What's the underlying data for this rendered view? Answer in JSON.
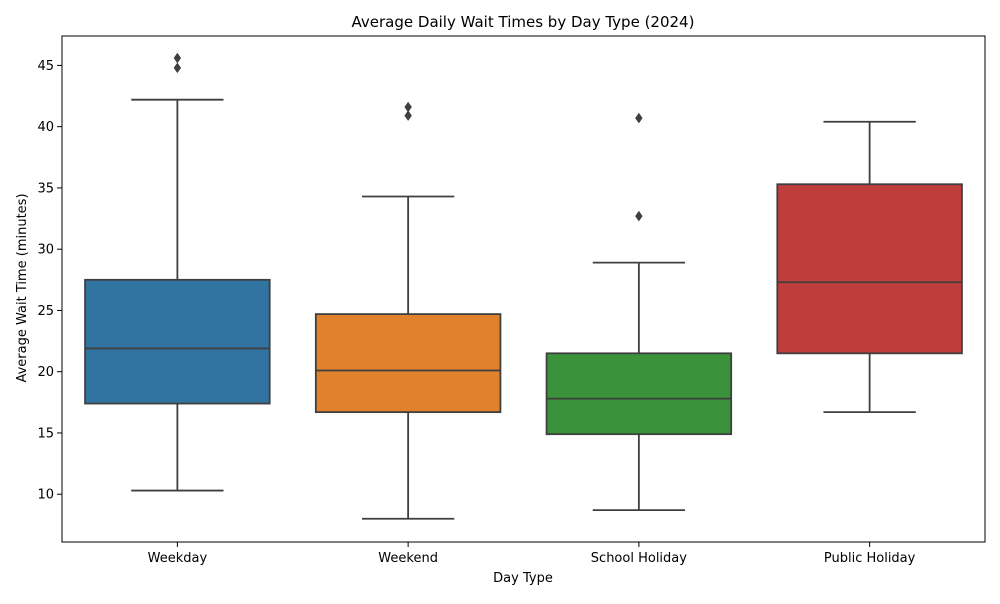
{
  "chart_data": {
    "type": "box",
    "title": "Average Daily Wait Times by Day Type (2024)",
    "xlabel": "Day Type",
    "ylabel": "Average Wait Time (minutes)",
    "ylim": [
      6.1,
      47.4
    ],
    "yticks": [
      10,
      15,
      20,
      25,
      30,
      35,
      40,
      45
    ],
    "grid": false,
    "categories": [
      "Weekday",
      "Weekend",
      "School Holiday",
      "Public Holiday"
    ],
    "boxes": [
      {
        "category": "Weekday",
        "color": "#3274a1",
        "whisker_low": 10.3,
        "q1": 17.4,
        "median": 21.9,
        "q3": 27.5,
        "whisker_high": 42.2,
        "outliers": [
          44.8,
          45.6
        ]
      },
      {
        "category": "Weekend",
        "color": "#e1812c",
        "whisker_low": 8.0,
        "q1": 16.7,
        "median": 20.1,
        "q3": 24.7,
        "whisker_high": 34.3,
        "outliers": [
          40.9,
          41.6
        ]
      },
      {
        "category": "School Holiday",
        "color": "#3a923a",
        "whisker_low": 8.7,
        "q1": 14.9,
        "median": 17.8,
        "q3": 21.5,
        "whisker_high": 28.9,
        "outliers": [
          32.7,
          40.7
        ]
      },
      {
        "category": "Public Holiday",
        "color": "#c03d3e",
        "whisker_low": 16.7,
        "q1": 21.5,
        "median": 27.3,
        "q3": 35.3,
        "whisker_high": 40.4,
        "outliers": []
      }
    ]
  }
}
